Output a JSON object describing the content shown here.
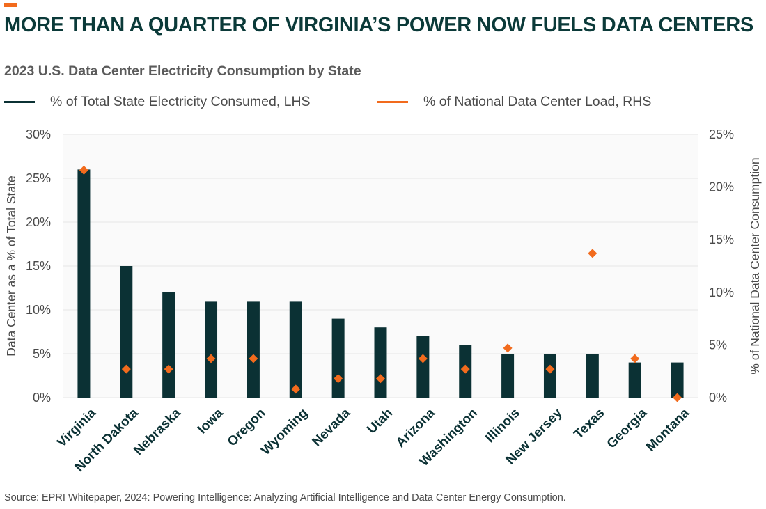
{
  "header": {
    "title": "MORE THAN A QUARTER OF VIRGINIA’S POWER NOW FUELS DATA CENTERS",
    "subtitle": "2023 U.S. Data Center Electricity Consumption by State"
  },
  "legend": {
    "lhs_label": "% of Total State Electricity Consumed, LHS",
    "rhs_label": "% of National Data Center Load, RHS"
  },
  "colors": {
    "bar": "#0b3134",
    "marker": "#f26b1d",
    "grid": "#e6e6e6",
    "plot_bg": "#fafafa",
    "title": "#0b3a39",
    "text": "#4a4a4a"
  },
  "footer": {
    "source": "Source: EPRI Whitepaper, 2024: Powering Intelligence: Analyzing Artificial Intelligence and Data Center Energy Consumption."
  },
  "chart_data": {
    "type": "bar",
    "categories": [
      "Virginia",
      "North Dakota",
      "Nebraska",
      "Iowa",
      "Oregon",
      "Wyoming",
      "Nevada",
      "Utah",
      "Arizona",
      "Washington",
      "Illinois",
      "New Jersey",
      "Texas",
      "Georgia",
      "Montana"
    ],
    "series": [
      {
        "name": "% of Total State Electricity Consumed, LHS",
        "type": "bar",
        "axis": "left",
        "values": [
          26,
          15,
          12,
          11,
          11,
          11,
          9,
          8,
          7,
          6,
          5,
          5,
          5,
          4,
          4
        ]
      },
      {
        "name": "% of National Data Center Load, RHS",
        "type": "scatter",
        "marker": "diamond",
        "axis": "right",
        "values": [
          21.6,
          2.7,
          2.7,
          3.7,
          3.7,
          0.8,
          1.8,
          1.8,
          3.7,
          2.7,
          4.7,
          2.7,
          13.7,
          3.7,
          0.0
        ]
      }
    ],
    "ylabel": "Data Center as a % of Total State",
    "y2label": "% of National Data Center Consumption",
    "ylim": [
      0,
      30
    ],
    "y2lim": [
      0,
      25
    ],
    "yticks": [
      "0%",
      "5%",
      "10%",
      "15%",
      "20%",
      "25%",
      "30%"
    ],
    "y2ticks": [
      "0%",
      "5%",
      "10%",
      "15%",
      "20%",
      "25%"
    ],
    "grid": true,
    "legend_position": "top"
  }
}
